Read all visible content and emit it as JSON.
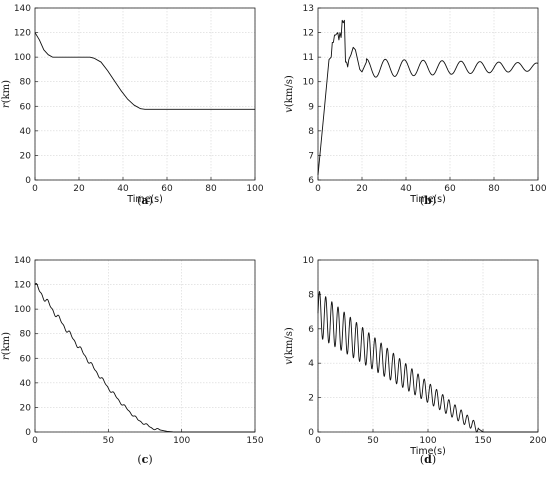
{
  "chart_data": [
    {
      "id": "a",
      "type": "line",
      "caption": "a",
      "xlabel": "Time(s)",
      "ylabel_var": "r",
      "ylabel_unit": "(km)",
      "xlim": [
        0,
        100
      ],
      "ylim": [
        0,
        140
      ],
      "xticks": [
        0,
        20,
        40,
        60,
        80,
        100
      ],
      "yticks": [
        0,
        20,
        40,
        60,
        80,
        100,
        120,
        140
      ],
      "grid": true,
      "series": [
        {
          "x": [
            0,
            2,
            4,
            6,
            8,
            10,
            15,
            20,
            25,
            27,
            30,
            33,
            36,
            39,
            42,
            45,
            48,
            50,
            55,
            60,
            70,
            80,
            90,
            100
          ],
          "y": [
            120,
            114,
            106,
            102,
            100,
            100,
            100,
            100,
            100,
            99,
            96,
            89,
            81,
            73,
            66,
            61,
            58,
            57.5,
            57.5,
            57.5,
            57.5,
            57.5,
            57.5,
            57.5
          ]
        }
      ]
    },
    {
      "id": "b",
      "type": "line",
      "caption": "b",
      "xlabel": "Time(s)",
      "ylabel_var": "v",
      "ylabel_unit": "(km/s)",
      "xlim": [
        0,
        100
      ],
      "ylim": [
        6,
        13
      ],
      "xticks": [
        0,
        20,
        40,
        60,
        80,
        100
      ],
      "yticks": [
        6,
        7,
        8,
        9,
        10,
        11,
        12,
        13
      ],
      "grid": true,
      "series": [
        {
          "x": [
            0,
            3,
            5,
            6,
            6.5,
            7,
            7.5,
            8,
            9,
            9.5,
            10,
            10.5,
            11,
            11.5,
            12,
            12.5,
            13,
            13.5,
            14,
            15,
            16,
            17,
            18,
            19,
            20,
            21,
            22
          ],
          "y": [
            6.2,
            9.0,
            10.9,
            11.0,
            11.6,
            11.6,
            11.9,
            11.9,
            12.0,
            11.7,
            12.0,
            11.8,
            12.5,
            12.4,
            12.5,
            10.8,
            10.8,
            10.6,
            10.9,
            11.1,
            11.4,
            11.3,
            10.9,
            10.5,
            10.4,
            10.6,
            10.8
          ]
        }
      ],
      "oscillation": {
        "x_start": 22,
        "x_end": 100,
        "base": 10.55,
        "base_end": 10.6,
        "amp_start": 0.38,
        "amp_end": 0.16,
        "period": 8.6
      }
    },
    {
      "id": "c",
      "type": "line",
      "caption": "c",
      "xlabel": "",
      "ylabel_var": "r",
      "ylabel_unit": "(km)",
      "xlim": [
        0,
        150
      ],
      "ylim": [
        0,
        140
      ],
      "xticks": [
        0,
        50,
        100,
        150
      ],
      "yticks": [
        0,
        20,
        40,
        60,
        80,
        100,
        120,
        140
      ],
      "grid": true,
      "series": [
        {
          "x": [
            0,
            10,
            20,
            30,
            40,
            50,
            60,
            70,
            80,
            90,
            95,
            100,
            110,
            120,
            130,
            140,
            150
          ],
          "y": [
            120,
            103,
            86,
            69,
            52,
            36,
            22,
            10,
            3,
            0.5,
            0,
            0,
            0,
            0,
            0,
            0,
            0
          ]
        }
      ],
      "oscillation": {
        "x_start": 0,
        "x_end": 85,
        "amp_start": 3.0,
        "amp_end": 0.8,
        "period": 7.5
      }
    },
    {
      "id": "d",
      "type": "line",
      "caption": "d",
      "xlabel": "Time(s)",
      "ylabel_var": "v",
      "ylabel_unit": "(km/s)",
      "xlim": [
        0,
        200
      ],
      "ylim": [
        0,
        10
      ],
      "xticks": [
        0,
        50,
        100,
        150,
        200
      ],
      "yticks": [
        0,
        2,
        4,
        6,
        8,
        10
      ],
      "grid": true,
      "series": [
        {
          "x": [
            0,
            150,
            200
          ],
          "y": [
            6.9,
            0,
            0
          ]
        }
      ],
      "oscillation": {
        "x_start": 0,
        "x_end": 146,
        "amp_start": 1.35,
        "amp_end": 0.25,
        "period": 5.6
      }
    }
  ]
}
